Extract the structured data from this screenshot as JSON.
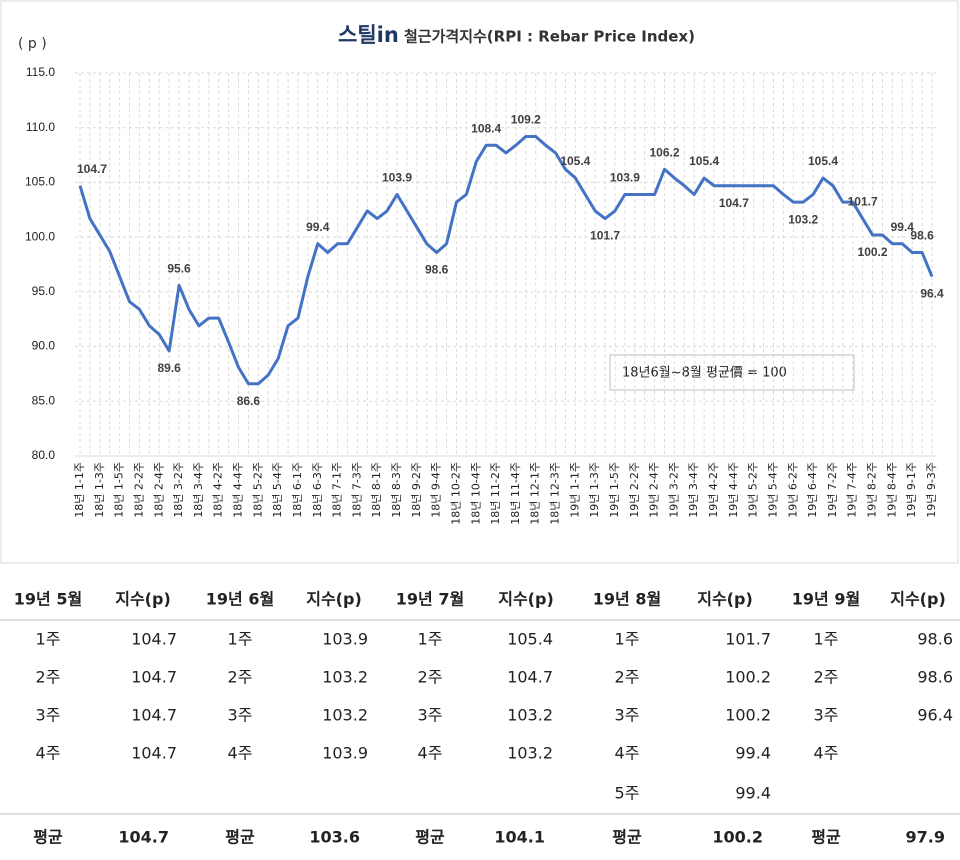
{
  "chart_data": {
    "type": "line",
    "logo": "스틸in",
    "title": "철근가격지수(RPI : Rebar Price Index)",
    "y_label": "( p )",
    "annotation": "18년6월~8월 평균價 = 100",
    "color": "#4472c4",
    "grid": true,
    "ylim": [
      80,
      115
    ],
    "yticks": [
      {
        "value": 80,
        "label": "80.0"
      },
      {
        "value": 85,
        "label": "85.0"
      },
      {
        "value": 90,
        "label": "90.0"
      },
      {
        "value": 95,
        "label": "95.0"
      },
      {
        "value": 100,
        "label": "100.0"
      },
      {
        "value": 105,
        "label": "105.0"
      },
      {
        "value": 110,
        "label": "110.0"
      },
      {
        "value": 115,
        "label": "115.0"
      }
    ],
    "categories": [
      "18년 1-1주",
      null,
      "18년 1-3주",
      null,
      "18년 1-5주",
      null,
      "18년 2-2주",
      null,
      "18년 2-4주",
      null,
      "18년 3-2주",
      null,
      "18년 3-4주",
      null,
      "18년 4-2주",
      null,
      "18년 4-4주",
      null,
      "18년 5-2주",
      null,
      "18년 5-4주",
      null,
      "18년 6-1주",
      null,
      "18년 6-3주",
      null,
      "18년 7-1주",
      null,
      "18년 7-3주",
      null,
      "18년 8-1주",
      null,
      "18년 8-3주",
      null,
      "18년 9-2주",
      null,
      "18년 9-4주",
      null,
      "18년 10-2주",
      null,
      "18년 10-4주",
      null,
      "18년 11-2주",
      null,
      "18년 11-4주",
      null,
      "18년 12-1주",
      null,
      "18년 12-3주",
      null,
      "19년 1-1주",
      null,
      "19년 1-3주",
      null,
      "19년 1-5주",
      null,
      "19년 2-2주",
      null,
      "19년 2-4주",
      null,
      "19년 3-2주",
      null,
      "19년 3-4주",
      null,
      "19년 4-2주",
      null,
      "19년 4-4주",
      null,
      "19년 5-2주",
      null,
      "19년 5-4주",
      null,
      "19년 6-2주",
      null,
      "19년 6-4주",
      null,
      "19년 7-2주",
      null,
      "19년 7-4주",
      null,
      "19년 8-2주",
      null,
      "19년 8-4주",
      null,
      "19년 9-1주",
      null,
      "19년 9-3주"
    ],
    "values": [
      104.7,
      101.7,
      100.2,
      98.7,
      96.4,
      94.1,
      93.4,
      91.9,
      91.1,
      89.6,
      95.6,
      93.4,
      91.9,
      92.6,
      92.6,
      90.4,
      88.1,
      86.6,
      86.6,
      87.4,
      88.9,
      91.9,
      92.6,
      96.4,
      99.4,
      98.6,
      99.4,
      99.4,
      100.9,
      102.4,
      101.7,
      102.4,
      103.9,
      102.4,
      100.9,
      99.4,
      98.6,
      99.4,
      103.2,
      103.9,
      106.9,
      108.4,
      108.4,
      107.7,
      108.4,
      109.2,
      109.2,
      108.4,
      107.7,
      106.2,
      105.4,
      103.9,
      102.4,
      101.7,
      102.4,
      103.9,
      103.9,
      103.9,
      103.9,
      106.2,
      105.4,
      104.7,
      103.9,
      105.4,
      104.7,
      104.7,
      104.7,
      104.7,
      104.7,
      104.7,
      104.7,
      103.9,
      103.2,
      103.2,
      103.9,
      105.4,
      104.7,
      103.2,
      103.2,
      101.7,
      100.2,
      100.2,
      99.4,
      99.4,
      98.6,
      98.6,
      96.4
    ],
    "labeled_points": [
      0,
      9,
      10,
      17,
      24,
      32,
      36,
      41,
      45,
      50,
      53,
      55,
      59,
      63,
      66,
      73,
      75,
      80,
      79,
      83,
      85,
      86
    ]
  },
  "table": {
    "columns": [
      {
        "month": "19년 5월",
        "unit": "지수(p)",
        "weeks": [
          "1주",
          "2주",
          "3주",
          "4주"
        ],
        "values": [
          104.7,
          104.7,
          104.7,
          104.7
        ],
        "avg_label": "평균",
        "avg": 104.7
      },
      {
        "month": "19년 6월",
        "unit": "지수(p)",
        "weeks": [
          "1주",
          "2주",
          "3주",
          "4주"
        ],
        "values": [
          103.9,
          103.2,
          103.2,
          103.9
        ],
        "avg_label": "평균",
        "avg": 103.6
      },
      {
        "month": "19년 7월",
        "unit": "지수(p)",
        "weeks": [
          "1주",
          "2주",
          "3주",
          "4주"
        ],
        "values": [
          105.4,
          104.7,
          103.2,
          103.2
        ],
        "avg_label": "평균",
        "avg": 104.1
      },
      {
        "month": "19년 8월",
        "unit": "지수(p)",
        "weeks": [
          "1주",
          "2주",
          "3주",
          "4주",
          "5주"
        ],
        "values": [
          101.7,
          100.2,
          100.2,
          99.4,
          99.4
        ],
        "avg_label": "평균",
        "avg": 100.2
      },
      {
        "month": "19년 9월",
        "unit": "지수(p)",
        "weeks": [
          "1주",
          "2주",
          "3주",
          "4주"
        ],
        "values": [
          98.6,
          98.6,
          96.4,
          null
        ],
        "avg_label": "평균",
        "avg": 97.9
      }
    ]
  }
}
